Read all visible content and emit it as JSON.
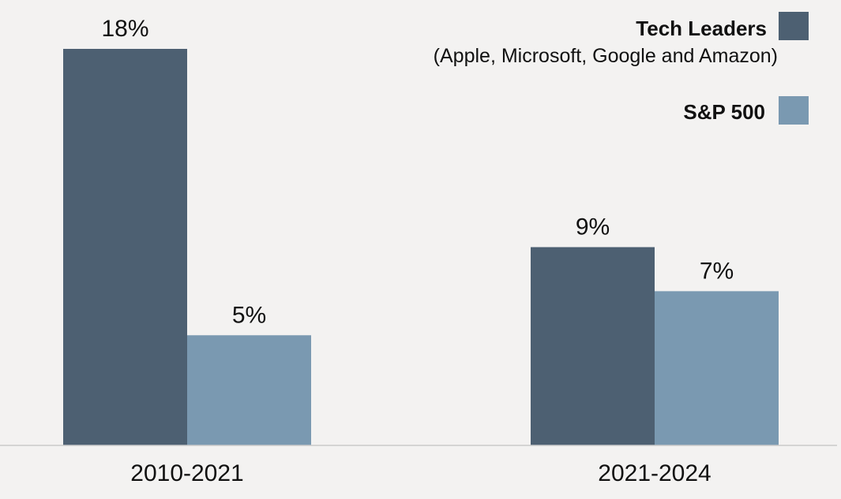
{
  "chart_data": {
    "type": "bar",
    "categories": [
      "2010-2021",
      "2021-2024"
    ],
    "series": [
      {
        "name": "Tech Leaders",
        "subtitle": "(Apple, Microsoft, Google and Amazon)",
        "color": "#4d6072",
        "values": [
          18,
          9
        ],
        "labels": [
          "18%",
          "9%"
        ]
      },
      {
        "name": "S&P 500",
        "color": "#7a99b1",
        "values": [
          5,
          7
        ],
        "labels": [
          "5%",
          "7%"
        ]
      }
    ],
    "title": "",
    "xlabel": "",
    "ylabel": "",
    "ylim": [
      0,
      18
    ],
    "grid": false,
    "legend_position": "top-right",
    "background": "#f3f2f1",
    "axis_color": "#c9c9c9"
  }
}
